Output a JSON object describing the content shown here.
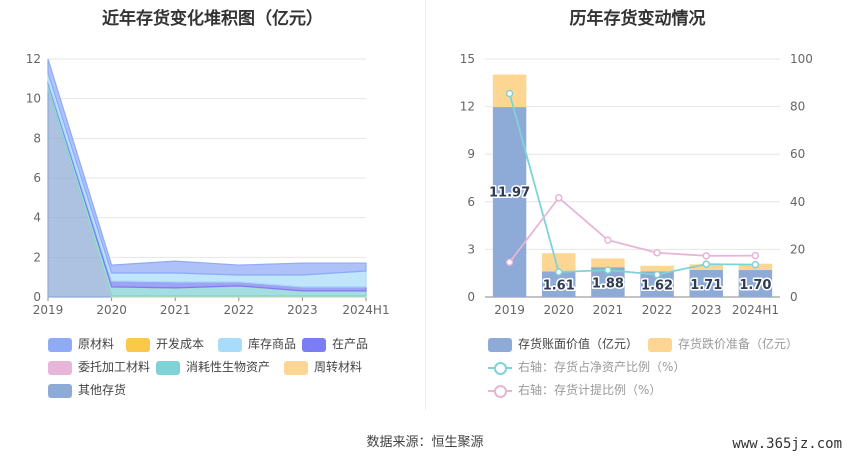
{
  "left_chart": {
    "title": "近年存货变化堆积图（亿元）",
    "chart_data": {
      "type": "area",
      "stacked": true,
      "categories": [
        "2019",
        "2020",
        "2021",
        "2022",
        "2023",
        "2024H1"
      ],
      "ylim": [
        0,
        12
      ],
      "yticks": [
        "0",
        "2",
        "4",
        "6",
        "8",
        "10",
        "12"
      ],
      "grid": true,
      "series": [
        {
          "name": "其他存货",
          "color": "#8eaad6",
          "values": [
            10.5,
            0,
            0,
            0,
            0,
            0
          ]
        },
        {
          "name": "周转材料",
          "color": "#fdd693",
          "values": [
            0,
            0.05,
            0.05,
            0.05,
            0.05,
            0.05
          ]
        },
        {
          "name": "消耗性生物资产",
          "color": "#7fd3d6",
          "values": [
            0.3,
            0.45,
            0.4,
            0.5,
            0.25,
            0.25
          ]
        },
        {
          "name": "委托加工材料",
          "color": "#e7b5d8",
          "values": [
            0,
            0.01,
            0.01,
            0.01,
            0.01,
            0.01
          ]
        },
        {
          "name": "在产品",
          "color": "#7b7ef2",
          "values": [
            0.1,
            0.3,
            0.3,
            0.2,
            0.2,
            0.2
          ]
        },
        {
          "name": "库存商品",
          "color": "#a9dcfb",
          "values": [
            0.4,
            0.4,
            0.45,
            0.35,
            0.6,
            0.8
          ]
        },
        {
          "name": "开发成本",
          "color": "#fbc84a",
          "values": [
            0,
            0,
            0,
            0,
            0,
            0
          ]
        },
        {
          "name": "原材料",
          "color": "#8faaf7",
          "values": [
            0.7,
            0.4,
            0.6,
            0.5,
            0.6,
            0.4
          ]
        }
      ],
      "legend_position": "bottom"
    },
    "legend": [
      {
        "label": "原材料",
        "color": "#8faaf7"
      },
      {
        "label": "开发成本",
        "color": "#fbc84a"
      },
      {
        "label": "库存商品",
        "color": "#a9dcfb"
      },
      {
        "label": "在产品",
        "color": "#7b7ef2"
      },
      {
        "label": "委托加工材料",
        "color": "#e7b5d8"
      },
      {
        "label": "消耗性生物资产",
        "color": "#7fd3d6"
      },
      {
        "label": "周转材料",
        "color": "#fdd693"
      },
      {
        "label": "其他存货",
        "color": "#8eaad6"
      }
    ]
  },
  "right_chart": {
    "title": "历年存货变动情况",
    "chart_data": {
      "type": "bar",
      "stacked": true,
      "categories": [
        "2019",
        "2020",
        "2021",
        "2022",
        "2023",
        "2024H1"
      ],
      "ylim_left": [
        0,
        15
      ],
      "yticks_left": [
        "0",
        "3",
        "6",
        "9",
        "12",
        "15"
      ],
      "ylim_right": [
        0,
        100
      ],
      "yticks_right": [
        "0",
        "20",
        "40",
        "60",
        "80",
        "100"
      ],
      "grid": true,
      "bars": [
        {
          "name": "存货账面价值（亿元）",
          "color": "#8eaad6",
          "values": [
            11.97,
            1.61,
            1.88,
            1.62,
            1.71,
            1.7
          ],
          "labels": [
            "11.97",
            "1.61",
            "1.88",
            "1.62",
            "1.71",
            "1.70"
          ]
        },
        {
          "name": "存货跌价准备（亿元）",
          "color": "#fdd693",
          "values": [
            2.05,
            1.15,
            0.55,
            0.35,
            0.35,
            0.4
          ]
        }
      ],
      "lines": [
        {
          "name": "右轴：存货占净资产比例（%）",
          "color": "#7fd3d6",
          "axis": "right",
          "values": [
            85.5,
            10.5,
            11.3,
            9.4,
            13.8,
            13.6
          ]
        },
        {
          "name": "右轴：存货计提比例（%）",
          "color": "#e7b5d8",
          "axis": "right",
          "values": [
            14.6,
            41.7,
            23.9,
            18.6,
            17.3,
            17.4
          ]
        }
      ],
      "legend_position": "bottom"
    },
    "legend": [
      {
        "label": "存货账面价值（亿元）",
        "color": "#8eaad6"
      },
      {
        "label": "存货跌价准备（亿元）",
        "color": "#fdd693"
      },
      {
        "label": "右轴：存货占净资产比例（%）",
        "color": "#7fd3d6"
      },
      {
        "label": "右轴：存货计提比例（%）",
        "color": "#e7b5d8"
      }
    ]
  },
  "footer": {
    "source": "数据来源：恒生聚源",
    "watermark": "www.365jz.com"
  }
}
